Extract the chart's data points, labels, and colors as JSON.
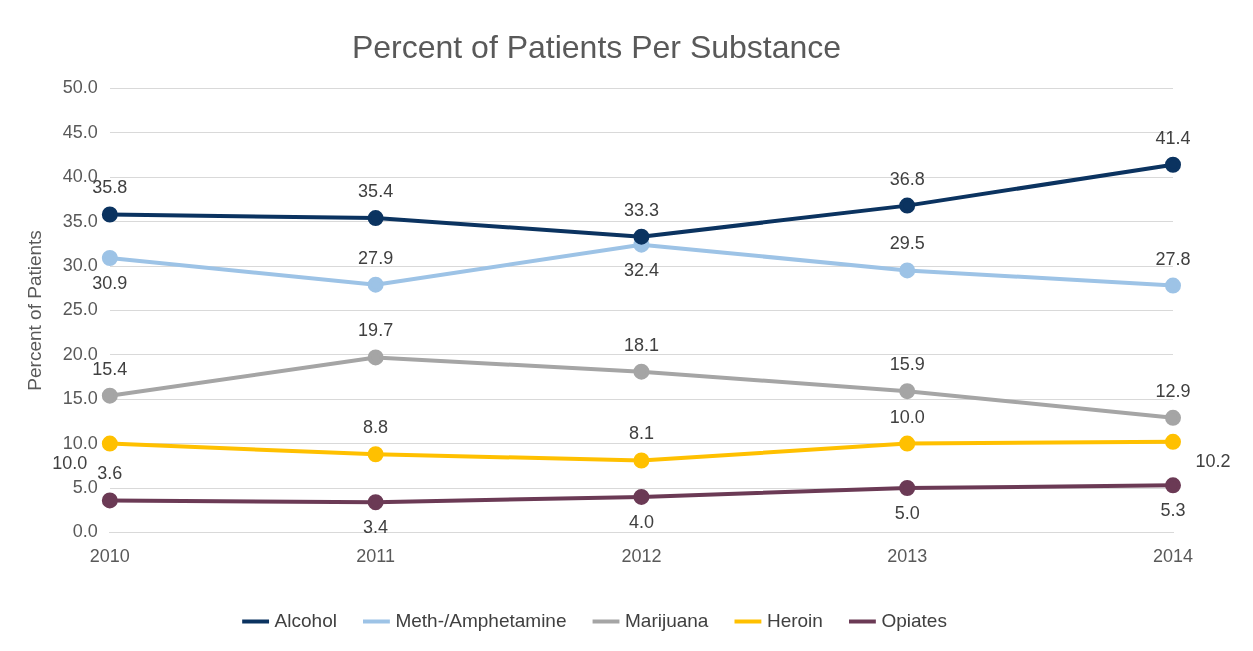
{
  "chart_data": {
    "type": "line",
    "title": "Percent of Patients Per Substance",
    "ylabel": "Percent of Patients",
    "categories": [
      "2010",
      "2011",
      "2012",
      "2013",
      "2014"
    ],
    "series": [
      {
        "name": "Alcohol",
        "color": "#0b3360",
        "values": [
          35.8,
          35.4,
          33.3,
          36.8,
          41.4
        ],
        "value_labels": [
          "35.8",
          "35.4",
          "33.3",
          "36.8",
          "41.4"
        ]
      },
      {
        "name": "Meth-/Amphetamine",
        "color": "#9dc3e6",
        "values": [
          30.9,
          27.9,
          32.4,
          29.5,
          27.8
        ],
        "value_labels": [
          "30.9",
          "27.9",
          "32.4",
          "29.5",
          "27.8"
        ]
      },
      {
        "name": "Marijuana",
        "color": "#a5a5a5",
        "values": [
          15.4,
          19.7,
          18.1,
          15.9,
          12.9
        ],
        "value_labels": [
          "15.4",
          "19.7",
          "18.1",
          "15.9",
          "12.9"
        ]
      },
      {
        "name": "Heroin",
        "color": "#ffc000",
        "values": [
          10.0,
          8.8,
          8.1,
          10.0,
          10.2
        ],
        "value_labels": [
          "10.0",
          "8.8",
          "8.1",
          "10.0",
          "10.2"
        ]
      },
      {
        "name": "Opiates",
        "color": "#6b3a55",
        "values": [
          3.6,
          3.4,
          4.0,
          5.0,
          5.3
        ],
        "value_labels": [
          "3.6",
          "3.4",
          "4.0",
          "5.0",
          "5.3"
        ]
      }
    ],
    "ylim": [
      0,
      50
    ],
    "yticks": [
      {
        "value": 0,
        "label": "0.0"
      },
      {
        "value": 5,
        "label": "5.0"
      },
      {
        "value": 10,
        "label": "10.0"
      },
      {
        "value": 15,
        "label": "15.0"
      },
      {
        "value": 20,
        "label": "20.0"
      },
      {
        "value": 25,
        "label": "25.0"
      },
      {
        "value": 30,
        "label": "30.0"
      },
      {
        "value": 35,
        "label": "35.0"
      },
      {
        "value": 40,
        "label": "40.0"
      },
      {
        "value": 45,
        "label": "45.0"
      },
      {
        "value": 50,
        "label": "50.0"
      }
    ],
    "grid": "y",
    "legend": "bottom",
    "marker": "circle",
    "line_style": "solid"
  }
}
